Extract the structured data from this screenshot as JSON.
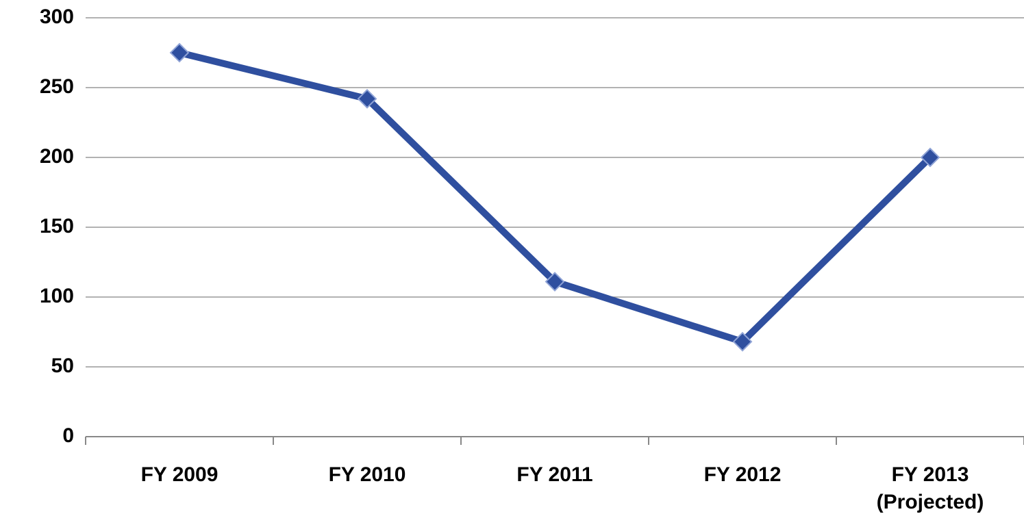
{
  "chart_data": {
    "type": "line",
    "categories": [
      "FY 2009",
      "FY 2010",
      "FY 2011",
      "FY 2012",
      "FY 2013\n(Projected)"
    ],
    "series": [
      {
        "color": "#2f4f9f",
        "values": [
          275,
          242,
          111,
          68,
          200
        ]
      }
    ],
    "ylim": [
      0,
      300
    ],
    "yticks": [
      0,
      50,
      100,
      150,
      200,
      250,
      300
    ],
    "grid": true
  }
}
